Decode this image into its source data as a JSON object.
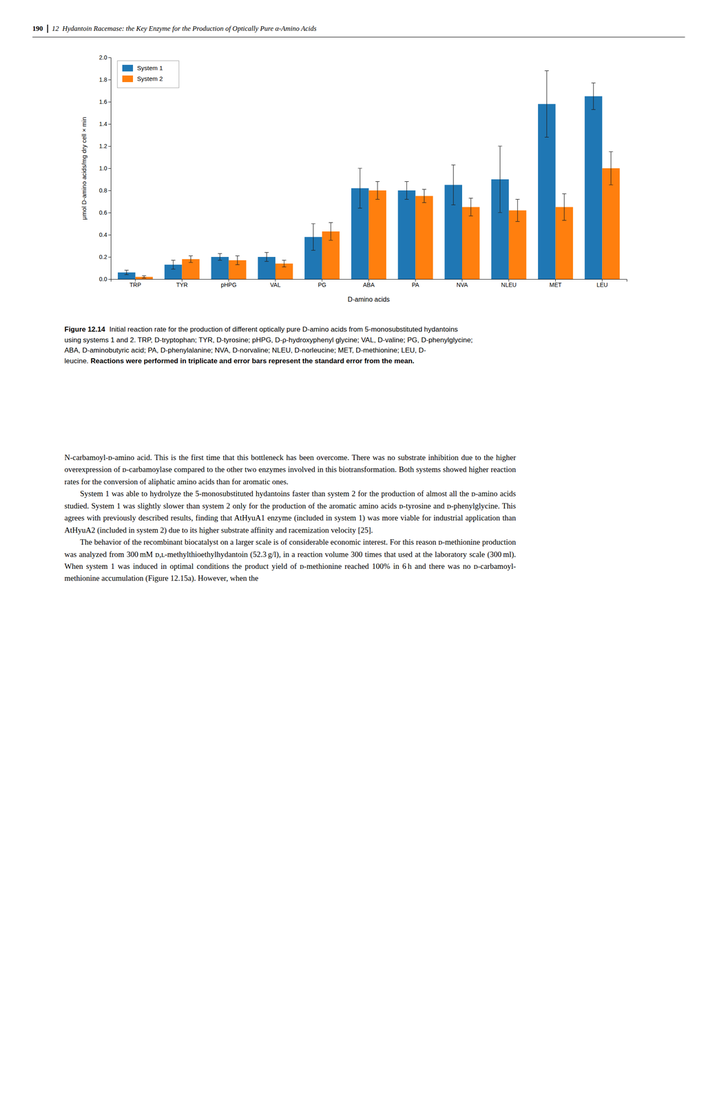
{
  "chart_data": {
    "type": "bar",
    "categories": [
      "TRP",
      "TYR",
      "pHPG",
      "VAL",
      "PG",
      "ABA",
      "PA",
      "NVA",
      "NLEU",
      "MET",
      "LEU"
    ],
    "series": [
      {
        "name": "System 1",
        "values": [
          0.06,
          0.13,
          0.2,
          0.2,
          0.38,
          0.82,
          0.8,
          0.85,
          0.9,
          1.58,
          1.65
        ],
        "errors": [
          0.02,
          0.04,
          0.03,
          0.04,
          0.12,
          0.18,
          0.08,
          0.18,
          0.3,
          0.3,
          0.12
        ]
      },
      {
        "name": "System 2",
        "values": [
          0.02,
          0.18,
          0.17,
          0.14,
          0.43,
          0.8,
          0.75,
          0.65,
          0.62,
          0.65,
          1.0
        ],
        "errors": [
          0.01,
          0.03,
          0.04,
          0.03,
          0.08,
          0.08,
          0.06,
          0.08,
          0.1,
          0.12,
          0.15
        ]
      }
    ],
    "xlabel": "D-amino acids",
    "ylabel": "μmol D-amino acids/mg dry cell × min",
    "ylim": [
      0.0,
      2.0
    ],
    "yticks": [
      {
        "value": 0.0,
        "label": "0.0"
      },
      0.2,
      0.4,
      0.6,
      0.8,
      {
        "value": 1.0,
        "label": "1.0"
      },
      1.2,
      1.4,
      1.6,
      1.8,
      {
        "value": 2.0,
        "label": "2.0"
      }
    ],
    "grid": false,
    "legend": "upper left"
  },
  "page": {
    "page_number": "190",
    "header": "12  Hydantoin Racemase: the Key Enzyme for the Production of Optically Pure α-Amino Acids",
    "caption_label": "Figure 12.14",
    "caption_text": "Initial reaction rate for the production of different optically pure D-amino acids from 5-monosubstituted hydantoins using systems 1 and 2. TRP, D-tryptophan; TYR, D-tyrosine; pHPG, D-ρ-hydroxyphenyl glycine; VAL, D-valine; PG, D-phenylglycine; ABA, D-aminobutyric acid; PA, D-phenylalanine; NVA, D-norvaline; NLEU, D-norleucine; MET, D-methionine; LEU, D-leucine.",
    "caption_note": "Reactions were performed in triplicate and error bars represent the standard error from the mean.",
    "body": [
      {
        "indent": false,
        "text": "N-carbamoyl-ᴅ-amino acid. This is the first time that this bottleneck has been overcome. There was no substrate inhibition due to the higher overexpression of ᴅ-carbamoylase compared to the other two enzymes involved in this biotransformation. Both systems showed higher reaction rates for the conversion of aliphatic amino acids than for aromatic ones."
      },
      {
        "indent": true,
        "text": "System 1 was able to hydrolyze the 5-monosubstituted hydantoins faster than system 2 for the production of almost all the ᴅ-amino acids studied. System 1 was slightly slower than system 2 only for the production of the aromatic amino acids ᴅ-tyrosine and ᴅ-phenylglycine. This agrees with previously described results, finding that AtHyuA1 enzyme (included in system 1) was more viable for industrial application than AtHyuA2 (included in system 2) due to its higher substrate affinity and racemization velocity [25]."
      },
      {
        "indent": true,
        "text": "The behavior of the recombinant biocatalyst on a larger scale is of considerable economic interest. For this reason ᴅ-methionine production was analyzed from 300 mM ᴅ,ʟ-methylthioethylhydantoin (52.3 g/l), in a reaction volume 300 times that used at the laboratory scale (300 ml). When system 1 was induced in optimal conditions the product yield of ᴅ-methionine reached 100% in 6 h and there was no ᴅ-carbamoyl-methionine accumulation (Figure 12.15a). However, when the"
      }
    ]
  }
}
